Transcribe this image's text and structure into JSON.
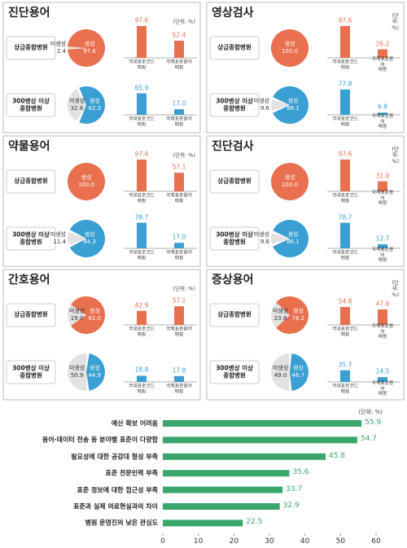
{
  "chart_data": [
    {
      "type": "panel",
      "title": "진단용어",
      "unit": "(단위: %)",
      "ylim": [
        0,
        100
      ],
      "pie_labels": [
        "생성",
        "미생성"
      ],
      "bar_categories": [
        "국내표준코드\n매핑",
        "국제표준용어\n매핑"
      ],
      "rows": [
        {
          "label": "상급종합병원",
          "color": "#e8704f",
          "pie_values": [
            97.6,
            2.4
          ],
          "pie_value_labels": [
            "97.6",
            "2.4"
          ],
          "values": [
            97.6,
            52.4
          ],
          "value_labels": [
            "97.6",
            "52.4"
          ]
        },
        {
          "label": "300병상 이상\n종합병원",
          "color": "#3a9fd2",
          "pie_values": [
            62.3,
            32.6
          ],
          "pie_value_labels": [
            "62.3",
            "32.6"
          ],
          "values": [
            65.9,
            17.0
          ],
          "value_labels": [
            "65.9",
            "17.0"
          ]
        }
      ]
    },
    {
      "type": "panel",
      "title": "영상검사",
      "unit": "(단위: %)",
      "ylim": [
        0,
        100
      ],
      "pie_labels": [
        "생성",
        "미생성"
      ],
      "bar_categories": [
        "국내표준코드\n매핑",
        "국제표준용어\n매핑"
      ],
      "rows": [
        {
          "label": "상급종합병원",
          "color": "#e8704f",
          "pie_values": [
            100.0,
            null
          ],
          "pie_value_labels": [
            "100.0",
            null
          ],
          "values": [
            97.6,
            26.2
          ],
          "value_labels": [
            "97.6",
            "26.2"
          ]
        },
        {
          "label": "300병상 이상\n종합병원",
          "color": "#3a9fd2",
          "pie_values": [
            86.1,
            9.6
          ],
          "pie_value_labels": [
            "86.1",
            "9.6"
          ],
          "values": [
            77.8,
            6.8
          ],
          "value_labels": [
            "77.8",
            "6.8"
          ]
        }
      ]
    },
    {
      "type": "panel",
      "title": "약물용어",
      "unit": "(단위: %)",
      "ylim": [
        0,
        100
      ],
      "pie_labels": [
        "생성",
        "미생성"
      ],
      "bar_categories": [
        "국내표준코드\n매핑",
        "국제표준용어\n매핑"
      ],
      "rows": [
        {
          "label": "상급종합병원",
          "color": "#e8704f",
          "pie_values": [
            100.0,
            null
          ],
          "pie_value_labels": [
            "100.0",
            null
          ],
          "values": [
            97.6,
            57.1
          ],
          "value_labels": [
            "97.6",
            "57.1"
          ]
        },
        {
          "label": "300병상 이상\n종합병원",
          "color": "#3a9fd2",
          "pie_values": [
            84.3,
            11.4
          ],
          "pie_value_labels": [
            "84.3",
            "11.4"
          ],
          "values": [
            78.7,
            17.0
          ],
          "value_labels": [
            "78.7",
            "17.0"
          ]
        }
      ]
    },
    {
      "type": "panel",
      "title": "진단검사",
      "unit": "(단위: %)",
      "ylim": [
        0,
        100
      ],
      "pie_labels": [
        "생성",
        "미생성"
      ],
      "bar_categories": [
        "국내표준코드\n매핑",
        "국제표준용어\n매핑"
      ],
      "rows": [
        {
          "label": "상급종합병원",
          "color": "#e8704f",
          "pie_values": [
            100.0,
            null
          ],
          "pie_value_labels": [
            "100.0",
            null
          ],
          "values": [
            97.6,
            31.0
          ],
          "value_labels": [
            "97.6",
            "31.0"
          ]
        },
        {
          "label": "300병상 이상\n종합병원",
          "color": "#3a9fd2",
          "pie_values": [
            86.1,
            9.6
          ],
          "pie_value_labels": [
            "86.1",
            "9.6"
          ],
          "values": [
            78.7,
            12.7
          ],
          "value_labels": [
            "78.7",
            "12.7"
          ]
        }
      ]
    },
    {
      "type": "panel",
      "title": "간호용어",
      "unit": "(단위: %)",
      "ylim": [
        0,
        100
      ],
      "pie_labels": [
        "생성",
        "미생성"
      ],
      "bar_categories": [
        "국내표준코드\n매핑",
        "국제표준용어\n매핑"
      ],
      "rows": [
        {
          "label": "상급종합병원",
          "color": "#e8704f",
          "pie_values": [
            81.0,
            19.0
          ],
          "pie_value_labels": [
            "81.0",
            "19.0"
          ],
          "values": [
            42.9,
            57.1
          ],
          "value_labels": [
            "42.9",
            "57.1"
          ]
        },
        {
          "label": "300병상 이상\n종합병원",
          "color": "#3a9fd2",
          "pie_values": [
            44.9,
            50.9
          ],
          "pie_value_labels": [
            "44.9",
            "50.9"
          ],
          "values": [
            18.8,
            17.8
          ],
          "value_labels": [
            "18.8",
            "17.8"
          ]
        }
      ]
    },
    {
      "type": "panel",
      "title": "증상용어",
      "unit": "(단위: %)",
      "ylim": [
        0,
        100
      ],
      "pie_labels": [
        "생성",
        "미생성"
      ],
      "bar_categories": [
        "국내표준코드\n매핑",
        "국제표준용어\n매핑"
      ],
      "rows": [
        {
          "label": "상급종합병원",
          "color": "#e8704f",
          "pie_values": [
            76.2,
            23.8
          ],
          "pie_value_labels": [
            "76.2",
            "23.8"
          ],
          "values": [
            54.8,
            47.6
          ],
          "value_labels": [
            "54.8",
            "47.6"
          ]
        },
        {
          "label": "300병상 이상\n종합병원",
          "color": "#3a9fd2",
          "pie_values": [
            46.7,
            49.0
          ],
          "pie_value_labels": [
            "46.7",
            "49.0"
          ],
          "values": [
            35.7,
            14.5
          ],
          "value_labels": [
            "35.7",
            "14.5"
          ]
        }
      ]
    },
    {
      "type": "hbar",
      "unit": "(단위: %)",
      "color": "#3aa66b",
      "categories": [
        "예산 확보 어려움",
        "용어·데이터 전송 등 분야별 표준이 다양함",
        "필요성에 대한 공감대 형성 부족",
        "표준 전문인력 부족",
        "표준 정보에 대한 접근성 부족",
        "표준과 실제 의료현실과의 차이",
        "병원 운영진의 낮은 관심도"
      ],
      "values": [
        55.9,
        54.7,
        45.8,
        35.6,
        33.7,
        32.9,
        22.5
      ],
      "xlim": [
        0,
        60
      ],
      "xticks": [
        0,
        10,
        20,
        30,
        40,
        50,
        60
      ]
    }
  ]
}
